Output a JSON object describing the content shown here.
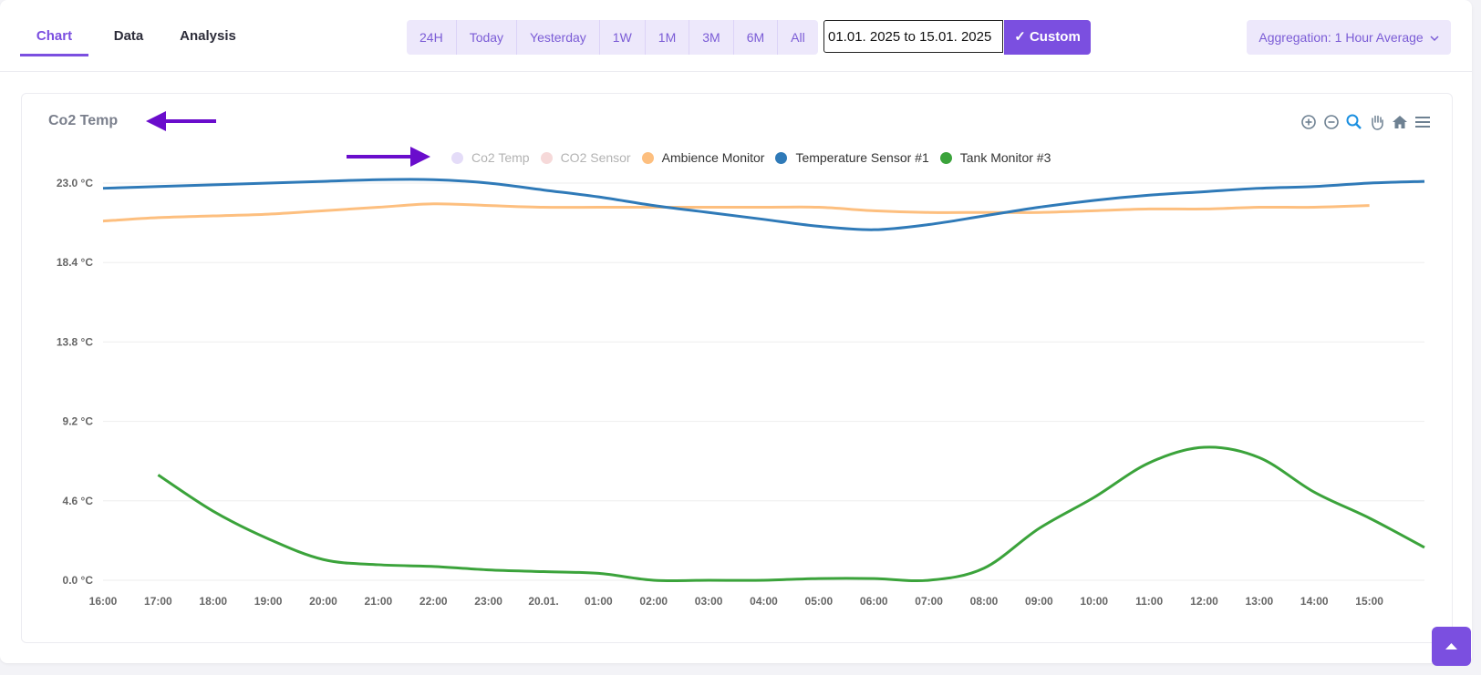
{
  "tabs": [
    {
      "label": "Chart",
      "active": true
    },
    {
      "label": "Data",
      "active": false
    },
    {
      "label": "Analysis",
      "active": false
    }
  ],
  "ranges": [
    "24H",
    "Today",
    "Yesterday",
    "1W",
    "1M",
    "3M",
    "6M",
    "All"
  ],
  "date_range": {
    "value": "01.01. 2025 to 15.01. 2025"
  },
  "custom_button": {
    "label": "Custom",
    "icon": "check-icon"
  },
  "aggregation": {
    "label": "Aggregation: 1 Hour Average",
    "icon": "chevron-down-icon"
  },
  "chart_panel": {
    "title": "Co2 Temp",
    "toolbar": [
      "zoom-in-icon",
      "zoom-out-icon",
      "zoom-select-icon",
      "pan-hand-icon",
      "home-icon",
      "menu-icon"
    ]
  },
  "annotations": [
    {
      "type": "arrow",
      "direction": "left",
      "color": "#6a0dcc"
    },
    {
      "type": "arrow",
      "direction": "right",
      "color": "#6a0dcc"
    }
  ],
  "chart_data": {
    "type": "line",
    "title": "Co2 Temp",
    "x_tick_labels": [
      "16:00",
      "17:00",
      "18:00",
      "19:00",
      "20:00",
      "21:00",
      "22:00",
      "23:00",
      "20.01.",
      "01:00",
      "02:00",
      "03:00",
      "04:00",
      "05:00",
      "06:00",
      "07:00",
      "08:00",
      "09:00",
      "10:00",
      "11:00",
      "12:00",
      "13:00",
      "14:00",
      "15:00"
    ],
    "y_tick_labels": [
      "23.0 °C",
      "18.4 °C",
      "13.8 °C",
      "9.2 °C",
      "4.6 °C",
      "0.0 °C"
    ],
    "y_ticks": [
      23.0,
      18.4,
      13.8,
      9.2,
      4.6,
      0.0
    ],
    "ylim": [
      0,
      23.0
    ],
    "grid": true,
    "legend_position": "top-center",
    "series": [
      {
        "name": "Co2 Temp",
        "color": "#d9d0f5",
        "visible": false,
        "values": []
      },
      {
        "name": "CO2 Sensor",
        "color": "#f5d3d3",
        "visible": false,
        "values": []
      },
      {
        "name": "Ambience Monitor",
        "color": "#fdbf7f",
        "visible": true,
        "x": [
          0,
          1,
          2,
          3,
          4,
          5,
          6,
          7,
          8,
          9,
          10,
          11,
          12,
          13,
          14,
          15,
          16,
          17,
          18,
          19,
          20,
          21,
          22,
          23
        ],
        "values": [
          20.8,
          21.0,
          21.1,
          21.2,
          21.4,
          21.6,
          21.8,
          21.7,
          21.6,
          21.6,
          21.6,
          21.6,
          21.6,
          21.6,
          21.4,
          21.3,
          21.3,
          21.3,
          21.4,
          21.5,
          21.5,
          21.6,
          21.6,
          21.7
        ]
      },
      {
        "name": "Temperature Sensor #1",
        "color": "#2f7ab8",
        "visible": true,
        "x": [
          0,
          1,
          2,
          3,
          4,
          5,
          6,
          7,
          8,
          9,
          10,
          11,
          12,
          13,
          14,
          15,
          16,
          17,
          18,
          19,
          20,
          21,
          22,
          23,
          24
        ],
        "values": [
          22.7,
          22.8,
          22.9,
          23.0,
          23.1,
          23.2,
          23.2,
          23.0,
          22.6,
          22.2,
          21.7,
          21.3,
          20.9,
          20.5,
          20.3,
          20.6,
          21.1,
          21.6,
          22.0,
          22.3,
          22.5,
          22.7,
          22.8,
          23.0,
          23.1
        ]
      },
      {
        "name": "Tank Monitor #3",
        "color": "#3ba33b",
        "visible": true,
        "x": [
          1,
          2,
          3,
          4,
          5,
          6,
          7,
          8,
          9,
          10,
          11,
          12,
          13,
          14,
          15,
          16,
          17,
          18,
          19,
          20,
          21,
          22,
          23,
          24
        ],
        "values": [
          6.1,
          4.0,
          2.4,
          1.2,
          0.9,
          0.8,
          0.6,
          0.5,
          0.4,
          0.0,
          0.0,
          0.0,
          0.1,
          0.1,
          0.0,
          0.7,
          3.0,
          4.8,
          6.8,
          7.7,
          7.1,
          5.1,
          3.6,
          1.9
        ]
      }
    ]
  }
}
